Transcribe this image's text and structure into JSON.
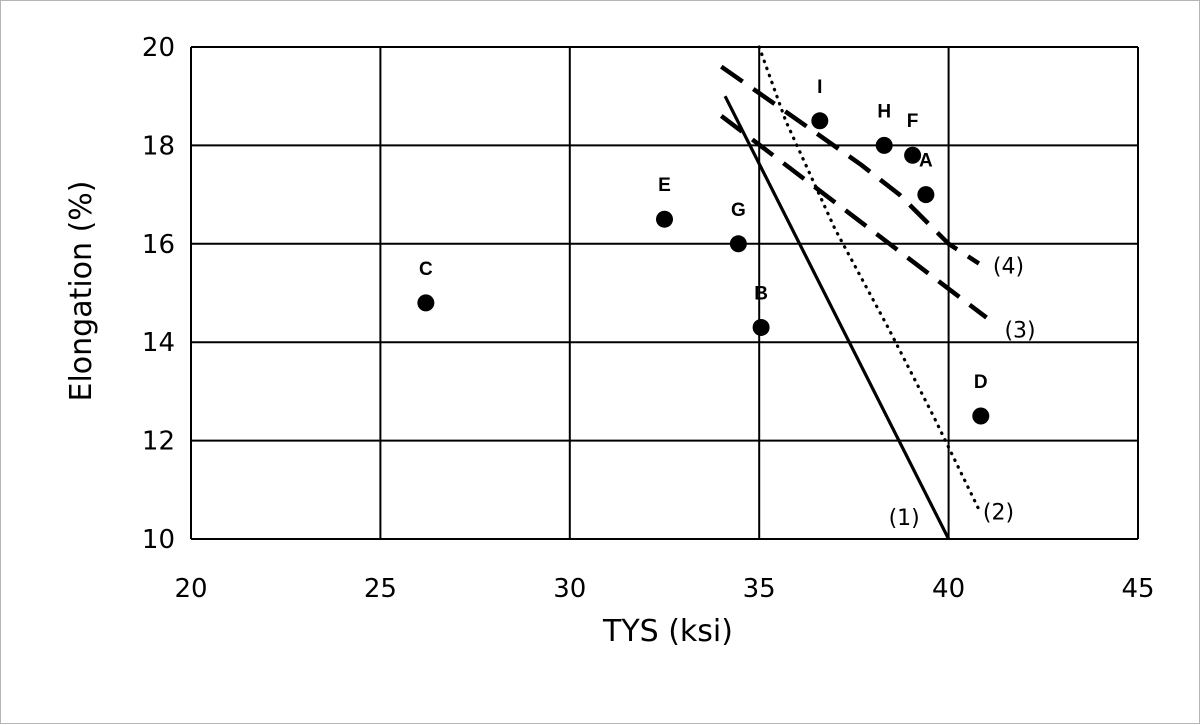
{
  "chart_data": {
    "type": "scatter",
    "title": "",
    "xlabel": "TYS (ksi)",
    "ylabel": "Elongation (%)",
    "xlim": [
      20,
      45
    ],
    "ylim": [
      10,
      20
    ],
    "x_ticks": [
      "20",
      "25",
      "30",
      "35",
      "40",
      "45"
    ],
    "y_ticks": [
      "10",
      "12",
      "14",
      "16",
      "18",
      "20"
    ],
    "grid": true,
    "points": [
      {
        "label": "A",
        "x": 39.4,
        "y": 17.0
      },
      {
        "label": "B",
        "x": 35.05,
        "y": 14.3
      },
      {
        "label": "C",
        "x": 26.2,
        "y": 14.8
      },
      {
        "label": "D",
        "x": 40.85,
        "y": 12.5
      },
      {
        "label": "E",
        "x": 32.5,
        "y": 16.5
      },
      {
        "label": "F",
        "x": 39.05,
        "y": 17.8
      },
      {
        "label": "G",
        "x": 34.45,
        "y": 16.0
      },
      {
        "label": "H",
        "x": 38.3,
        "y": 18.0
      },
      {
        "label": "I",
        "x": 36.6,
        "y": 18.5
      }
    ],
    "curves": [
      {
        "label": "(1)",
        "style": "solid",
        "points": [
          [
            34.1,
            19.0
          ],
          [
            40.0,
            10.0
          ]
        ]
      },
      {
        "label": "(2)",
        "style": "dotted",
        "points": [
          [
            35.0,
            20.0
          ],
          [
            35.7,
            18.5
          ],
          [
            37.0,
            16.3
          ],
          [
            38.4,
            14.3
          ],
          [
            39.6,
            12.5
          ],
          [
            40.8,
            10.6
          ]
        ]
      },
      {
        "label": "(3)",
        "style": "dashed",
        "points": [
          [
            34.0,
            18.6
          ],
          [
            41.0,
            14.5
          ]
        ]
      },
      {
        "label": "(4)",
        "style": "dashed",
        "points": [
          [
            34.0,
            19.6
          ],
          [
            35.3,
            18.9
          ],
          [
            36.6,
            18.2
          ],
          [
            37.7,
            17.6
          ],
          [
            38.7,
            17.0
          ],
          [
            40.0,
            16.0
          ],
          [
            40.8,
            15.6
          ]
        ]
      }
    ]
  }
}
